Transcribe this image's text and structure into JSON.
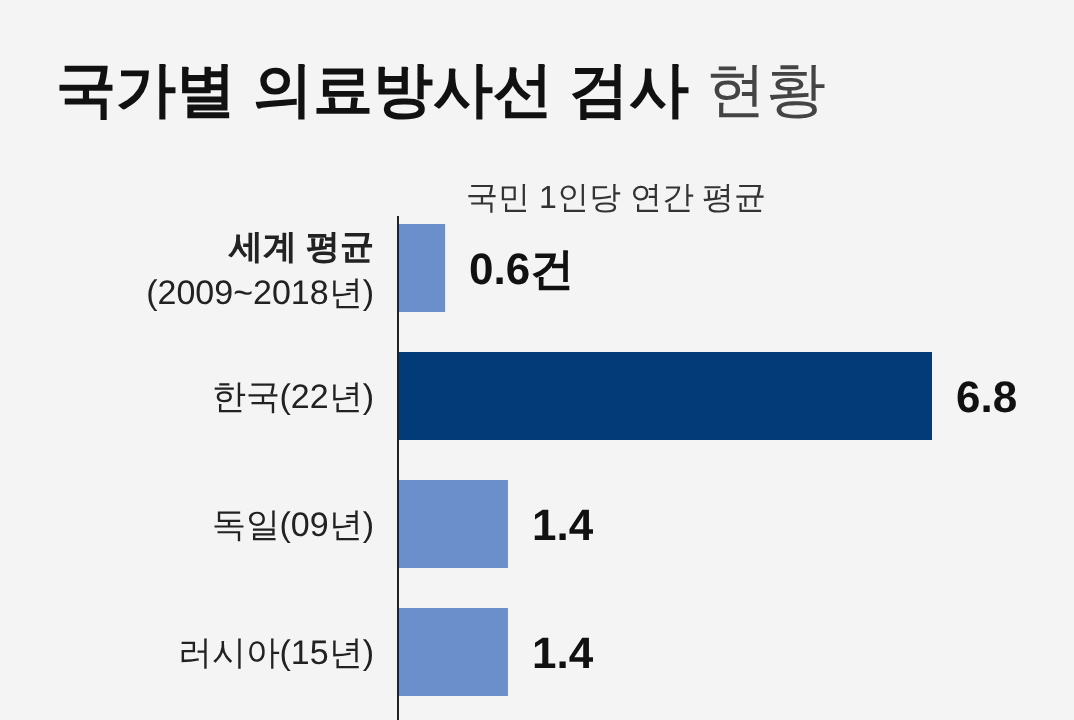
{
  "chart_data": {
    "type": "bar",
    "orientation": "horizontal",
    "title": "국가별 의료방사선 검사 현황",
    "subtitle": "국민 1인당 연간 평균",
    "categories": [
      "세계 평균\n(2009~2018년)",
      "한국(22년)",
      "독일(09년)",
      "러시아(15년)"
    ],
    "values": [
      0.6,
      6.8,
      1.4,
      1.4
    ],
    "colors": [
      "#6a8fcb",
      "#033b78",
      "#6a8fcb",
      "#6a8fcb"
    ],
    "value_labels": [
      "0.6건",
      "6.8",
      "1.4",
      "1.4"
    ]
  }
}
